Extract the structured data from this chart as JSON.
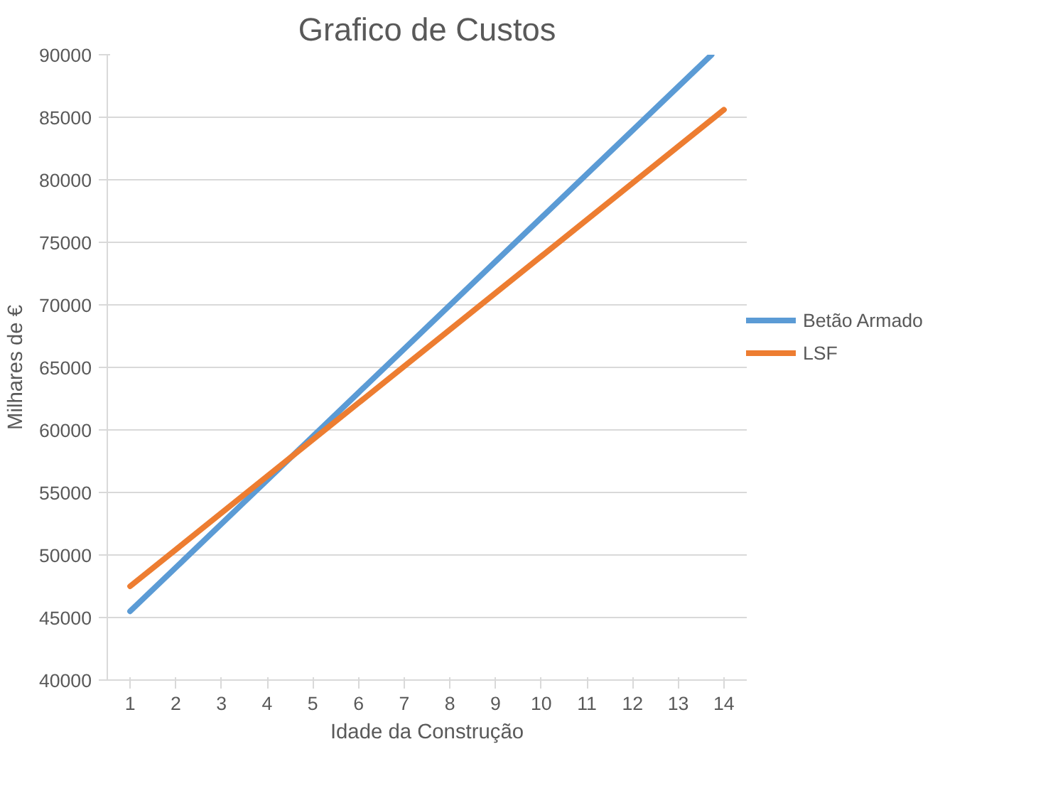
{
  "chart_data": {
    "type": "line",
    "title": "Grafico de Custos",
    "xlabel": "Idade da Construção",
    "ylabel": "Milhares de €",
    "xlim": [
      0.5,
      14.5
    ],
    "xticks": [
      1,
      2,
      3,
      4,
      5,
      6,
      7,
      8,
      9,
      10,
      11,
      12,
      13,
      14
    ],
    "ylim": [
      40000,
      90000
    ],
    "yticks": [
      40000,
      45000,
      50000,
      55000,
      60000,
      65000,
      70000,
      75000,
      80000,
      85000,
      90000
    ],
    "grid": "y",
    "legend": "right",
    "marker": "none",
    "line_style": "solid",
    "series": [
      {
        "name": "Betão Armado",
        "color": "#5b9bd5",
        "x": [
          1,
          13.73
        ],
        "values": [
          45500,
          90000
        ]
      },
      {
        "name": "LSF",
        "color": "#ed7d31",
        "x": [
          1,
          14
        ],
        "values": [
          47500,
          85600
        ]
      }
    ]
  }
}
